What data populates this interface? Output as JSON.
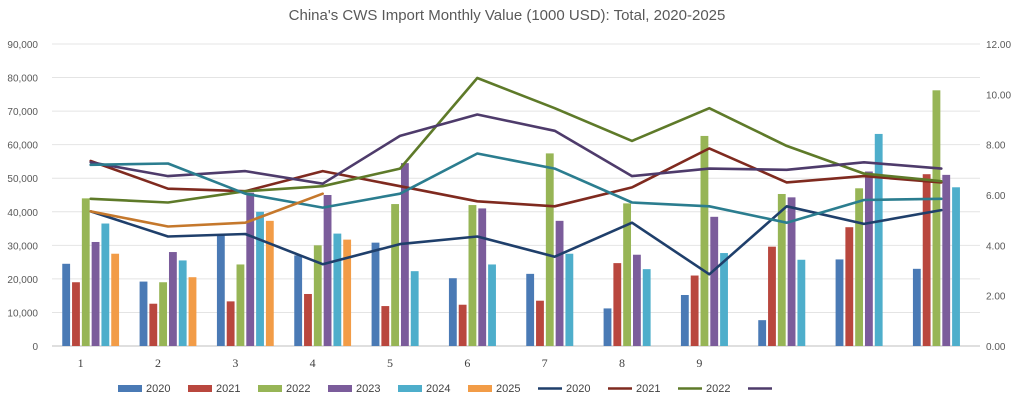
{
  "chart_data": {
    "type": "bar",
    "title": "China's CWS Import Monthly Value (1000 USD): Total, 2020-2025",
    "categories": [
      "1",
      "2",
      "3",
      "4",
      "5",
      "6",
      "7",
      "8",
      "9",
      "",
      "",
      ""
    ],
    "left_axis": {
      "min": 0,
      "max": 90000,
      "step": 10000,
      "ticks": [
        "0",
        "10,000",
        "20,000",
        "30,000",
        "40,000",
        "50,000",
        "60,000",
        "70,000",
        "80,000",
        "90,000"
      ]
    },
    "right_axis": {
      "min": 0,
      "max": 12,
      "step": 2,
      "ticks": [
        "0.00",
        "2.00",
        "4.00",
        "6.00",
        "8.00",
        "10.00",
        "12.00"
      ]
    },
    "grid": true,
    "legend_position": "bottom",
    "series": [
      {
        "name": "2020",
        "kind": "bar",
        "color": "#4a7ab5",
        "values": [
          24500,
          19200,
          33000,
          27000,
          30800,
          20200,
          21500,
          11200,
          15200,
          7700,
          25800,
          23000
        ]
      },
      {
        "name": "2021",
        "kind": "bar",
        "color": "#b9473e",
        "values": [
          19000,
          12600,
          13300,
          15500,
          11900,
          12300,
          13500,
          24700,
          21000,
          29600,
          35400,
          51200
        ]
      },
      {
        "name": "2022",
        "kind": "bar",
        "color": "#97b556",
        "values": [
          44000,
          19000,
          24300,
          30000,
          42300,
          42000,
          57400,
          42500,
          62600,
          45300,
          47000,
          76200
        ]
      },
      {
        "name": "2023",
        "kind": "bar",
        "color": "#7b5c9b",
        "values": [
          31000,
          28000,
          45700,
          45000,
          54500,
          41000,
          37300,
          27200,
          38500,
          44300,
          52000,
          51000
        ]
      },
      {
        "name": "2024",
        "kind": "bar",
        "color": "#4eaecb",
        "values": [
          36500,
          25500,
          40000,
          33500,
          22300,
          24300,
          27500,
          22900,
          27700,
          25700,
          63200,
          47300
        ]
      },
      {
        "name": "2025",
        "kind": "bar",
        "color": "#f29c47",
        "values": [
          27500,
          20500,
          37300,
          31700,
          null,
          null,
          null,
          null,
          null,
          null,
          null,
          null
        ]
      },
      {
        "name": "2020",
        "kind": "line",
        "color": "#1f3f6b",
        "values": [
          5.35,
          4.35,
          4.45,
          3.25,
          4.05,
          4.35,
          3.55,
          4.9,
          2.85,
          5.55,
          4.85,
          5.4
        ]
      },
      {
        "name": "2021",
        "kind": "line",
        "color": "#7f2a1f",
        "values": [
          7.35,
          6.25,
          6.15,
          6.95,
          6.35,
          5.75,
          5.55,
          6.3,
          7.85,
          6.5,
          6.75,
          6.5
        ]
      },
      {
        "name": "2022",
        "kind": "line",
        "color": "#5e7a29",
        "values": [
          5.85,
          5.7,
          6.15,
          6.35,
          7.05,
          10.65,
          9.45,
          8.15,
          9.45,
          7.95,
          6.85,
          6.55
        ]
      },
      {
        "name": "",
        "kind": "line",
        "color": "#4e3b6b",
        "values": [
          7.3,
          6.75,
          6.95,
          6.45,
          8.35,
          9.2,
          8.55,
          6.75,
          7.05,
          7.0,
          7.3,
          7.05
        ]
      },
      {
        "name": "",
        "kind": "line",
        "color": "#2b7d8f",
        "values": [
          7.2,
          7.25,
          6.05,
          5.5,
          6.05,
          7.65,
          7.05,
          5.7,
          5.55,
          4.9,
          5.8,
          5.85
        ]
      },
      {
        "name": "",
        "kind": "line",
        "color": "#c5782c",
        "values": [
          5.35,
          4.75,
          4.9,
          6.05,
          null,
          null,
          null,
          null,
          null,
          null,
          null,
          null
        ]
      }
    ],
    "legend": [
      "2020",
      "2021",
      "2022",
      "2023",
      "2024",
      "2025",
      "2020",
      "2021",
      "2022"
    ]
  }
}
